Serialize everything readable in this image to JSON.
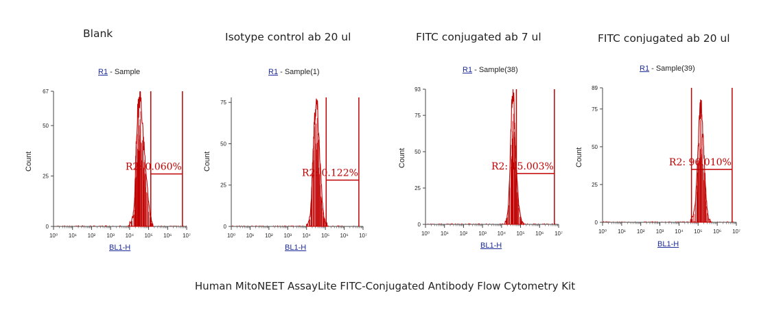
{
  "chart_data": [
    {
      "type": "area",
      "title": "Blank",
      "gate_label": "R1",
      "sample": " - Sample",
      "xlabel": "BL1-H",
      "ylabel": "Count",
      "x_scale": "log",
      "xlim": [
        1,
        10000000
      ],
      "ylim": [
        0,
        67
      ],
      "y_ticks": [
        0,
        25,
        50,
        67
      ],
      "x_tick_labels": [
        "10⁰",
        "10¹",
        "10²",
        "10³",
        "10⁴",
        "10⁵",
        "10⁶",
        "10⁷"
      ],
      "region": {
        "name": "R2",
        "label": "R2: 0.060%",
        "x_range": [
          130000,
          6000000
        ],
        "level": 26
      },
      "histogram": {
        "peak_x": 35000,
        "peak_y": 67,
        "x": [
          9000,
          12000,
          15000,
          18000,
          20000,
          22000,
          25000,
          28000,
          30000,
          33000,
          36000,
          40000,
          45000,
          52000,
          60000,
          70000,
          85000,
          100000,
          120000,
          140000,
          160000,
          180000
        ],
        "y": [
          1,
          2,
          5,
          12,
          25,
          40,
          52,
          60,
          58,
          63,
          67,
          61,
          52,
          44,
          38,
          28,
          20,
          12,
          6,
          3,
          1,
          0
        ]
      }
    },
    {
      "type": "area",
      "title": "Isotype control ab 20 ul",
      "gate_label": "R1",
      "sample": " - Sample(1)",
      "xlabel": "BL1-H",
      "ylabel": "Count",
      "x_scale": "log",
      "xlim": [
        1,
        10000000
      ],
      "ylim": [
        0,
        78
      ],
      "y_ticks": [
        0,
        25,
        50,
        75
      ],
      "x_tick_labels": [
        "10⁰",
        "10¹",
        "10²",
        "10³",
        "10⁴",
        "10⁵",
        "10⁶",
        "10⁷"
      ],
      "region": {
        "name": "R2",
        "label": "R2: 0.122%",
        "x_range": [
          110000,
          6000000
        ],
        "level": 28
      },
      "histogram": {
        "peak_x": 35000,
        "peak_y": 76,
        "x": [
          10000,
          13000,
          16000,
          18000,
          20000,
          23000,
          26000,
          29000,
          32000,
          36000,
          40000,
          45000,
          50000,
          58000,
          66000,
          75000,
          85000,
          100000,
          120000,
          140000
        ],
        "y": [
          1,
          3,
          8,
          18,
          32,
          50,
          64,
          70,
          73,
          76,
          66,
          55,
          44,
          30,
          18,
          10,
          5,
          2,
          1,
          0
        ]
      }
    },
    {
      "type": "area",
      "title": "FITC conjugated ab 7 ul",
      "gate_label": "R1",
      "sample": " - Sample(38)",
      "xlabel": "BL1-H",
      "ylabel": "Count",
      "x_scale": "log",
      "xlim": [
        1,
        10000000
      ],
      "ylim": [
        0,
        93
      ],
      "y_ticks": [
        0,
        25,
        50,
        75,
        93
      ],
      "x_tick_labels": [
        "10⁰",
        "10¹",
        "10²",
        "10³",
        "10⁴",
        "10⁵",
        "10⁶",
        "10⁷"
      ],
      "region": {
        "name": "R2",
        "label": "R2: 15.003%",
        "x_range": [
          60000,
          6000000
        ],
        "level": 35
      },
      "histogram": {
        "peak_x": 40000,
        "peak_y": 93,
        "x": [
          15000,
          18000,
          22000,
          26000,
          30000,
          33000,
          36000,
          40000,
          45000,
          50000,
          55000,
          60000,
          70000,
          80000,
          95000,
          110000,
          130000,
          160000
        ],
        "y": [
          1,
          3,
          10,
          30,
          55,
          75,
          85,
          93,
          80,
          62,
          48,
          38,
          25,
          14,
          7,
          3,
          1,
          0
        ]
      }
    },
    {
      "type": "area",
      "title": "FITC conjugated ab 20 ul",
      "gate_label": "R1",
      "sample": " - Sample(39)",
      "xlabel": "BL1-H",
      "ylabel": "Count",
      "x_scale": "log",
      "xlim": [
        1,
        10000000
      ],
      "ylim": [
        0,
        89
      ],
      "y_ticks": [
        0,
        25,
        50,
        75,
        89
      ],
      "x_tick_labels": [
        "10⁰",
        "10¹",
        "10²",
        "10³",
        "10⁴",
        "10⁵",
        "10⁶",
        "10⁷"
      ],
      "region": {
        "name": "R2",
        "label": "R2: 96.010%",
        "x_range": [
          45000,
          6000000
        ],
        "level": 35
      },
      "histogram": {
        "peak_x": 150000,
        "peak_y": 78,
        "x": [
          40000,
          55000,
          70000,
          85000,
          100000,
          115000,
          130000,
          145000,
          160000,
          180000,
          200000,
          230000,
          260000,
          300000,
          350000,
          420000,
          500000
        ],
        "y": [
          1,
          4,
          12,
          28,
          50,
          68,
          75,
          78,
          70,
          58,
          45,
          30,
          18,
          8,
          3,
          1,
          0
        ]
      }
    }
  ],
  "footer": "Human MitoNEET AssayLite FITC-Conjugated Antibody Flow Cytometry Kit",
  "colors": {
    "histogram": "#c00000",
    "region": "#c00000",
    "axis": "#444444",
    "link": "#1a2a9a"
  }
}
